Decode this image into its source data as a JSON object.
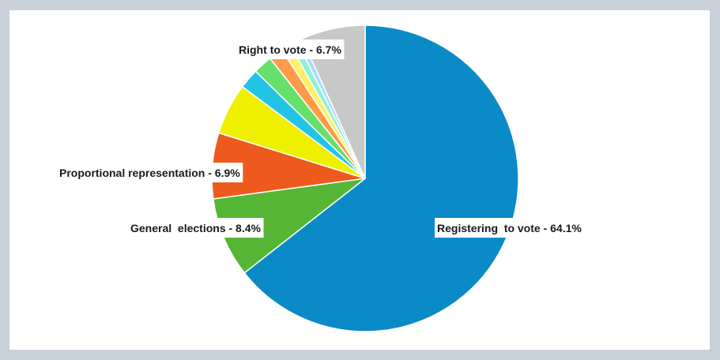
{
  "chart_data": {
    "type": "pie",
    "title": "",
    "start_angle_deg": 0,
    "direction": "clockwise",
    "slices": [
      {
        "label": "Registering  to vote - 64.1%",
        "value": 64.1,
        "color": "#0a8bc7",
        "show_label": true
      },
      {
        "label": "General  elections - 8.4%",
        "value": 8.4,
        "color": "#55b535",
        "show_label": true
      },
      {
        "label": "Proportional representation - 6.9%",
        "value": 6.9,
        "color": "#ee5a1d",
        "show_label": true
      },
      {
        "label": "",
        "value": 5.4,
        "color": "#eef000",
        "show_label": false
      },
      {
        "label": "",
        "value": 2.1,
        "color": "#22c4e6",
        "show_label": false
      },
      {
        "label": "",
        "value": 2.0,
        "color": "#66e06a",
        "show_label": false
      },
      {
        "label": "",
        "value": 1.5,
        "color": "#ff9a4a",
        "show_label": false
      },
      {
        "label": "",
        "value": 1.0,
        "color": "#fff066",
        "show_label": false
      },
      {
        "label": "",
        "value": 0.8,
        "color": "#8ff0d8",
        "show_label": false
      },
      {
        "label": "",
        "value": 0.6,
        "color": "#a8dcff",
        "show_label": false
      },
      {
        "label": "Right to vote - 6.7%",
        "value": 6.7,
        "color": "#c8c8c8",
        "show_label": true
      }
    ]
  }
}
